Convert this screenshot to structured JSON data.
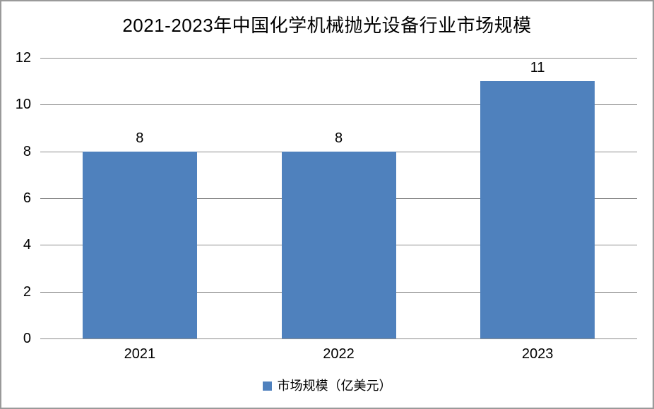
{
  "chart_data": {
    "type": "bar",
    "title": "2021-2023年中国化学机械抛光设备行业市场规模",
    "categories": [
      "2021",
      "2022",
      "2023"
    ],
    "series": [
      {
        "name": "市场规模（亿美元）",
        "values": [
          8,
          8,
          11
        ],
        "color": "#4F81BD"
      }
    ],
    "data_labels": [
      "8",
      "8",
      "11"
    ],
    "xlabel": "",
    "ylabel": "",
    "ylim": [
      0,
      12
    ],
    "yticks": [
      0,
      2,
      4,
      6,
      8,
      10,
      12
    ],
    "grid": "horizontal",
    "gridline_color": "#8c8c8c",
    "legend_position": "bottom"
  },
  "legend": {
    "label": "市场规模（亿美元）",
    "marker_color": "#4F81BD"
  },
  "frame": {
    "border_color": "#9a9a9a",
    "background_color": "#ffffff"
  }
}
